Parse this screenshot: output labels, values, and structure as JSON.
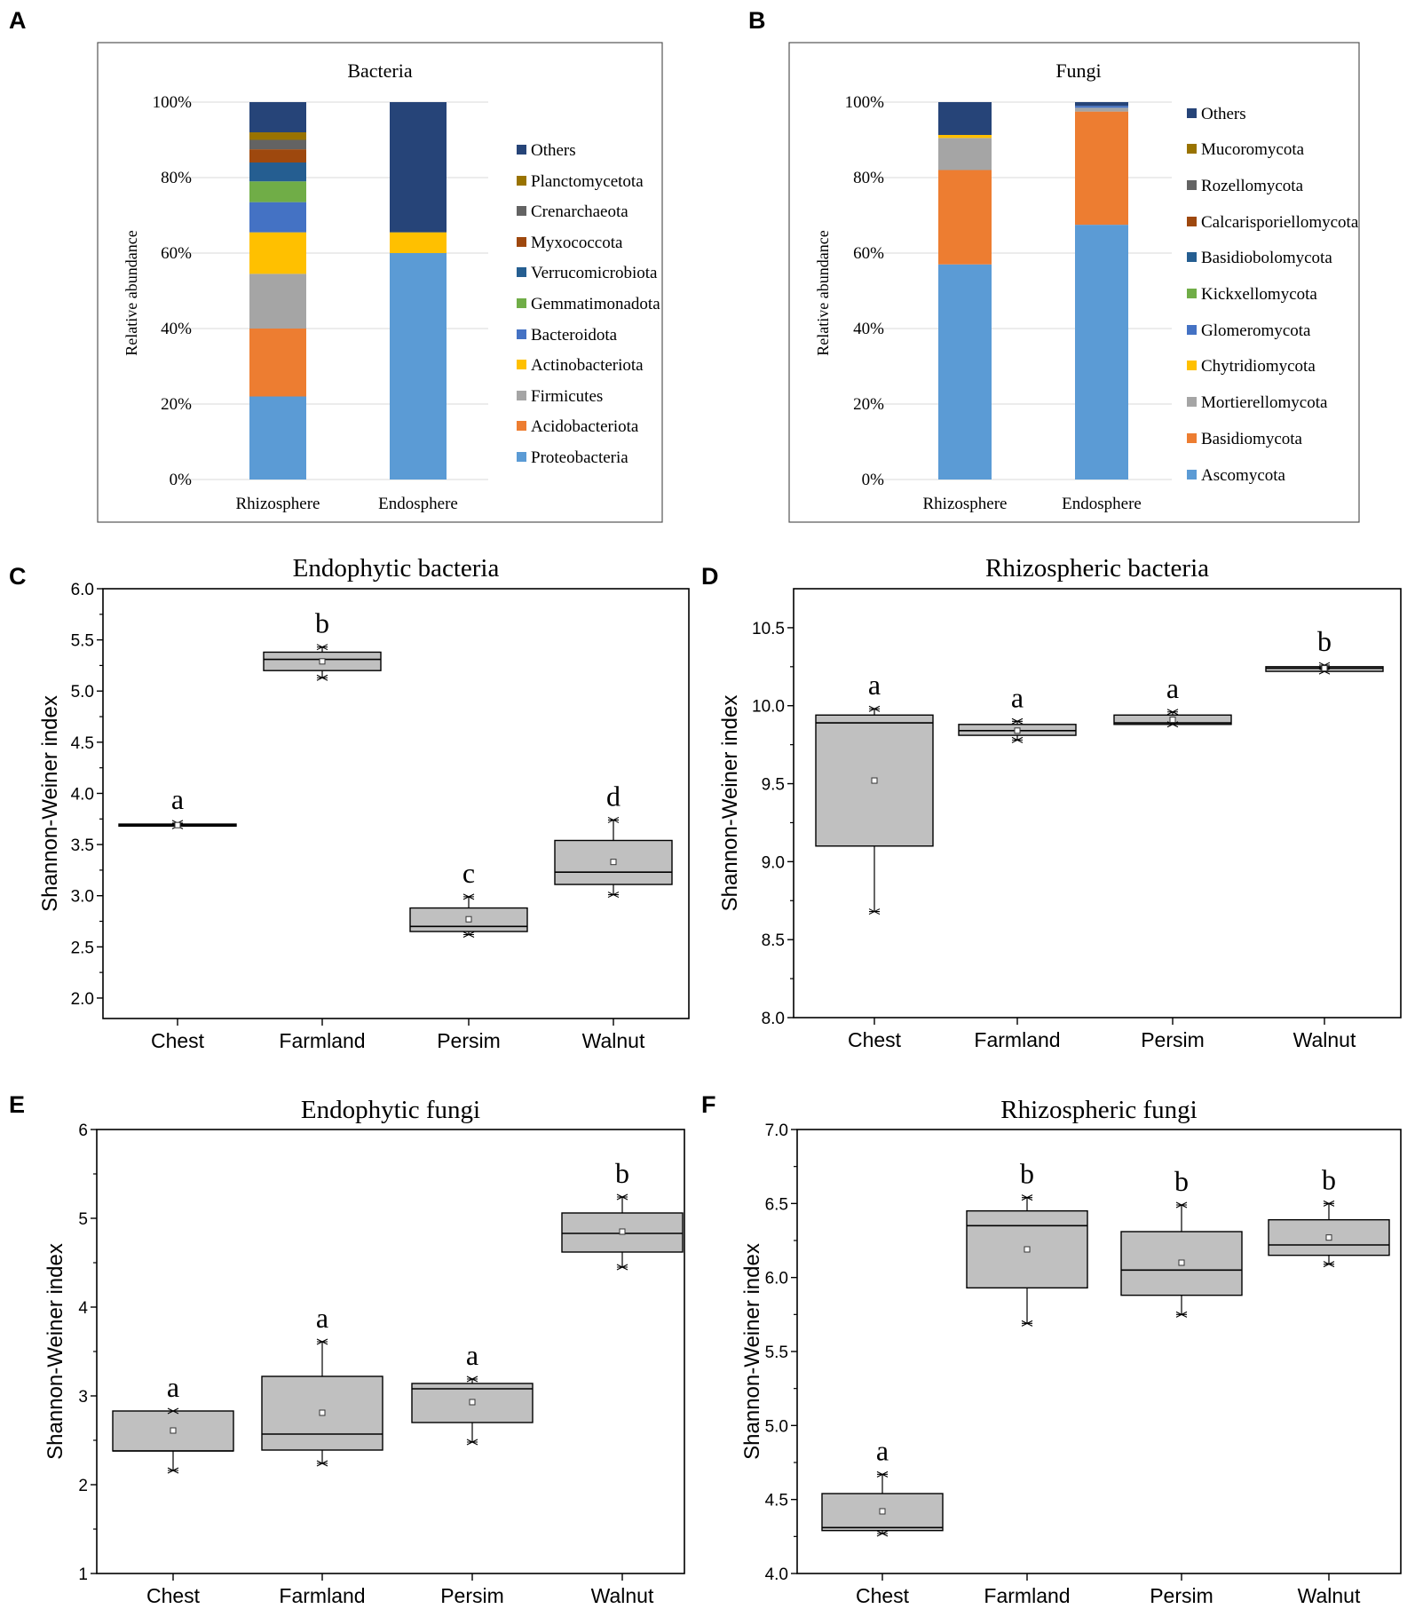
{
  "panels": {
    "A": {
      "letter": "A"
    },
    "B": {
      "letter": "B"
    },
    "C": {
      "letter": "C"
    },
    "D": {
      "letter": "D"
    },
    "E": {
      "letter": "E"
    },
    "F": {
      "letter": "F"
    }
  },
  "chart_data": [
    {
      "id": "A",
      "type": "bar",
      "stacked": true,
      "title": "Bacteria",
      "ylabel": "Relative  abundance",
      "xlabel": "",
      "ylim": [
        0,
        100
      ],
      "yticks": [
        "0%",
        "20%",
        "40%",
        "60%",
        "80%",
        "100%"
      ],
      "categories": [
        "Rhizosphere",
        "Endosphere"
      ],
      "series": [
        {
          "name": "Proteobacteria",
          "color": "#5b9bd5",
          "values": [
            22,
            60
          ]
        },
        {
          "name": "Acidobacteriota",
          "color": "#ed7d31",
          "values": [
            18,
            0
          ]
        },
        {
          "name": "Firmicutes",
          "color": "#a5a5a5",
          "values": [
            14.5,
            0
          ]
        },
        {
          "name": "Actinobacteriota",
          "color": "#ffc000",
          "values": [
            11,
            5.5
          ]
        },
        {
          "name": "Bacteroidota",
          "color": "#4472c4",
          "values": [
            8,
            0
          ]
        },
        {
          "name": "Gemmatimonadota",
          "color": "#70ad47",
          "values": [
            5.5,
            0
          ]
        },
        {
          "name": "Verrucomicrobiota",
          "color": "#255e91",
          "values": [
            5,
            0
          ]
        },
        {
          "name": "Myxococcota",
          "color": "#9e480e",
          "values": [
            3.5,
            0
          ]
        },
        {
          "name": "Crenarchaeota",
          "color": "#636363",
          "values": [
            2.5,
            0
          ]
        },
        {
          "name": "Planctomycetota",
          "color": "#997300",
          "values": [
            2,
            0
          ]
        },
        {
          "name": "Others",
          "color": "#264478",
          "values": [
            8,
            34.5
          ]
        }
      ]
    },
    {
      "id": "B",
      "type": "bar",
      "stacked": true,
      "title": "Fungi",
      "ylabel": "Relative  abundance",
      "xlabel": "",
      "ylim": [
        0,
        100
      ],
      "yticks": [
        "0%",
        "20%",
        "40%",
        "60%",
        "80%",
        "100%"
      ],
      "categories": [
        "Rhizosphere",
        "Endosphere"
      ],
      "series": [
        {
          "name": "Ascomycota",
          "color": "#5b9bd5",
          "values": [
            57,
            67.5
          ]
        },
        {
          "name": "Basidiomycota",
          "color": "#ed7d31",
          "values": [
            25,
            30
          ]
        },
        {
          "name": "Mortierellomycota",
          "color": "#a5a5a5",
          "values": [
            8.5,
            1
          ]
        },
        {
          "name": "Chytridiomycota",
          "color": "#ffc000",
          "values": [
            0.8,
            0
          ]
        },
        {
          "name": "Glomeromycota",
          "color": "#4472c4",
          "values": [
            0,
            0.5
          ]
        },
        {
          "name": "Kickxellomycota",
          "color": "#70ad47",
          "values": [
            0,
            0
          ]
        },
        {
          "name": "Basidiobolomycota",
          "color": "#255e91",
          "values": [
            0,
            0
          ]
        },
        {
          "name": "Calcarisporiellomycota",
          "color": "#9e480e",
          "values": [
            0,
            0
          ]
        },
        {
          "name": "Rozellomycota",
          "color": "#636363",
          "values": [
            0,
            0
          ]
        },
        {
          "name": "Mucoromycota",
          "color": "#997300",
          "values": [
            0,
            0
          ]
        },
        {
          "name": "Others",
          "color": "#264478",
          "values": [
            8.7,
            1
          ]
        }
      ]
    },
    {
      "id": "C",
      "type": "box",
      "title": "Endophytic bacteria",
      "ylabel": "Shannon-Weiner index",
      "ylim": [
        1.8,
        6.0
      ],
      "yticks": [
        "2.0",
        "2.5",
        "3.0",
        "3.5",
        "4.0",
        "4.5",
        "5.0",
        "5.5",
        "6.0"
      ],
      "categories": [
        "Chest",
        "Farmland",
        "Persim",
        "Walnut"
      ],
      "boxes": [
        {
          "q1": 3.68,
          "median": 3.69,
          "q3": 3.7,
          "min": 3.68,
          "max": 3.71,
          "mean": 3.69,
          "letter": "a"
        },
        {
          "q1": 5.2,
          "median": 5.31,
          "q3": 5.38,
          "min": 5.13,
          "max": 5.43,
          "mean": 5.29,
          "letter": "b"
        },
        {
          "q1": 2.65,
          "median": 2.7,
          "q3": 2.88,
          "min": 2.62,
          "max": 2.99,
          "mean": 2.77,
          "letter": "c"
        },
        {
          "q1": 3.11,
          "median": 3.23,
          "q3": 3.54,
          "min": 3.01,
          "max": 3.74,
          "mean": 3.33,
          "letter": "d"
        }
      ]
    },
    {
      "id": "D",
      "type": "box",
      "title": "Rhizospheric bacteria",
      "ylabel": "Shannon-Weiner index",
      "ylim": [
        8.0,
        10.75
      ],
      "yticks": [
        "8.0",
        "8.5",
        "9.0",
        "9.5",
        "10.0",
        "10.5"
      ],
      "categories": [
        "Chest",
        "Farmland",
        "Persim",
        "Walnut"
      ],
      "boxes": [
        {
          "q1": 9.1,
          "median": 9.89,
          "q3": 9.94,
          "min": 8.68,
          "max": 9.98,
          "mean": 9.52,
          "letter": "a"
        },
        {
          "q1": 9.81,
          "median": 9.84,
          "q3": 9.88,
          "min": 9.78,
          "max": 9.9,
          "mean": 9.84,
          "letter": "a"
        },
        {
          "q1": 9.88,
          "median": 9.89,
          "q3": 9.94,
          "min": 9.88,
          "max": 9.96,
          "mean": 9.91,
          "letter": "a"
        },
        {
          "q1": 10.22,
          "median": 10.24,
          "q3": 10.25,
          "min": 10.22,
          "max": 10.26,
          "mean": 10.24,
          "letter": "b"
        }
      ]
    },
    {
      "id": "E",
      "type": "box",
      "title": "Endophytic fungi",
      "ylabel": "Shannon-Weiner index",
      "ylim": [
        1,
        6
      ],
      "yticks": [
        "1",
        "2",
        "3",
        "4",
        "5",
        "6"
      ],
      "categories": [
        "Chest",
        "Farmland",
        "Persim",
        "Walnut"
      ],
      "boxes": [
        {
          "q1": 2.38,
          "median": 2.38,
          "q3": 2.83,
          "min": 2.16,
          "max": 2.83,
          "mean": 2.61,
          "letter": "a"
        },
        {
          "q1": 2.39,
          "median": 2.57,
          "q3": 3.22,
          "min": 2.24,
          "max": 3.61,
          "mean": 2.81,
          "letter": "a"
        },
        {
          "q1": 2.7,
          "median": 3.08,
          "q3": 3.14,
          "min": 2.48,
          "max": 3.19,
          "mean": 2.93,
          "letter": "a"
        },
        {
          "q1": 4.62,
          "median": 4.83,
          "q3": 5.06,
          "min": 4.45,
          "max": 5.24,
          "mean": 4.85,
          "letter": "b"
        }
      ]
    },
    {
      "id": "F",
      "type": "box",
      "title": "Rhizospheric fungi",
      "ylabel": "Shannon-Weiner index",
      "ylim": [
        4.0,
        7.0
      ],
      "yticks": [
        "4.0",
        "4.5",
        "5.0",
        "5.5",
        "6.0",
        "6.5",
        "7.0"
      ],
      "categories": [
        "Chest",
        "Farmland",
        "Persim",
        "Walnut"
      ],
      "boxes": [
        {
          "q1": 4.29,
          "median": 4.31,
          "q3": 4.54,
          "min": 4.27,
          "max": 4.67,
          "mean": 4.42,
          "letter": "a"
        },
        {
          "q1": 5.93,
          "median": 6.35,
          "q3": 6.45,
          "min": 5.69,
          "max": 6.54,
          "mean": 6.19,
          "letter": "b"
        },
        {
          "q1": 5.88,
          "median": 6.05,
          "q3": 6.31,
          "min": 5.75,
          "max": 6.49,
          "mean": 6.1,
          "letter": "b"
        },
        {
          "q1": 6.15,
          "median": 6.22,
          "q3": 6.39,
          "min": 6.09,
          "max": 6.5,
          "mean": 6.27,
          "letter": "b"
        }
      ]
    }
  ]
}
